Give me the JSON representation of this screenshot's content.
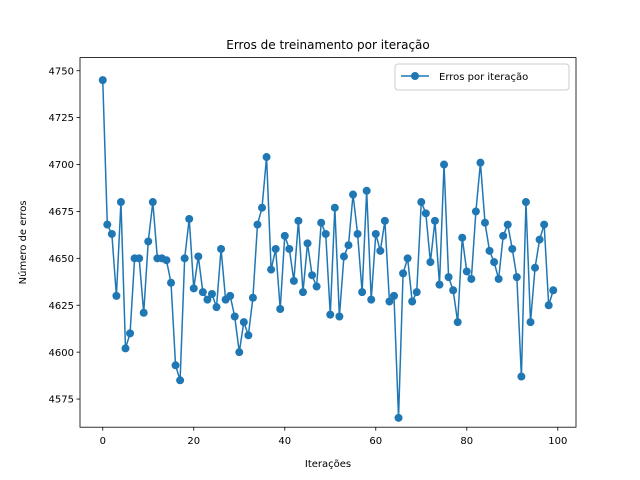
{
  "chart_data": {
    "type": "line",
    "title": "Erros de treinamento por iteração",
    "xlabel": "Iterações",
    "ylabel": "Número de erros",
    "xlim": [
      -5,
      104
    ],
    "ylim": [
      4560,
      4757
    ],
    "xticks": [
      0,
      20,
      40,
      60,
      80,
      100
    ],
    "yticks": [
      4575,
      4600,
      4625,
      4650,
      4675,
      4700,
      4725,
      4750
    ],
    "grid": false,
    "legend_position": "top-right",
    "series": [
      {
        "name": "Erros por iteração",
        "color": "#1f77b4",
        "marker": "circle",
        "x": [
          0,
          1,
          2,
          3,
          4,
          5,
          6,
          7,
          8,
          9,
          10,
          11,
          12,
          13,
          14,
          15,
          16,
          17,
          18,
          19,
          20,
          21,
          22,
          23,
          24,
          25,
          26,
          27,
          28,
          29,
          30,
          31,
          32,
          33,
          34,
          35,
          36,
          37,
          38,
          39,
          40,
          41,
          42,
          43,
          44,
          45,
          46,
          47,
          48,
          49,
          50,
          51,
          52,
          53,
          54,
          55,
          56,
          57,
          58,
          59,
          60,
          61,
          62,
          63,
          64,
          65,
          66,
          67,
          68,
          69,
          70,
          71,
          72,
          73,
          74,
          75,
          76,
          77,
          78,
          79,
          80,
          81,
          82,
          83,
          84,
          85,
          86,
          87,
          88,
          89,
          90,
          91,
          92,
          93,
          94,
          95,
          96,
          97,
          98,
          99
        ],
        "values": [
          4745,
          4668,
          4663,
          4630,
          4680,
          4602,
          4610,
          4650,
          4650,
          4621,
          4659,
          4680,
          4650,
          4650,
          4649,
          4637,
          4593,
          4585,
          4650,
          4671,
          4634,
          4651,
          4632,
          4628,
          4631,
          4624,
          4655,
          4628,
          4630,
          4619,
          4600,
          4616,
          4609,
          4629,
          4668,
          4677,
          4704,
          4644,
          4655,
          4623,
          4662,
          4655,
          4638,
          4670,
          4632,
          4658,
          4641,
          4635,
          4669,
          4663,
          4620,
          4677,
          4619,
          4651,
          4657,
          4684,
          4663,
          4632,
          4686,
          4628,
          4663,
          4654,
          4670,
          4627,
          4630,
          4565,
          4642,
          4650,
          4627,
          4632,
          4680,
          4674,
          4648,
          4670,
          4636,
          4700,
          4640,
          4633,
          4616,
          4661,
          4643,
          4639,
          4675,
          4701,
          4669,
          4654,
          4648,
          4639,
          4662,
          4668,
          4655,
          4640,
          4587,
          4680,
          4616,
          4645,
          4660,
          4668,
          4625,
          4633
        ]
      }
    ]
  }
}
